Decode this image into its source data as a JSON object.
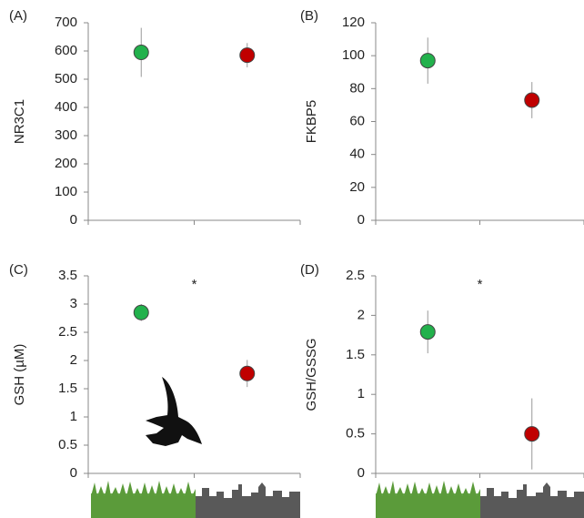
{
  "chart_data": [
    {
      "type": "point",
      "panel_label": "(A)",
      "y_label": "NR3C1",
      "categories": [
        null,
        null
      ],
      "values": [
        595,
        585
      ],
      "errors": [
        87,
        43
      ],
      "colors": [
        "#22b14c",
        "#c00000"
      ],
      "ylim": [
        0,
        700
      ],
      "yticks": [
        0,
        100,
        200,
        300,
        400,
        500,
        600,
        700
      ]
    },
    {
      "type": "point",
      "panel_label": "(B)",
      "y_label": "FKBP5",
      "categories": [
        null,
        null
      ],
      "values": [
        97,
        73
      ],
      "errors": [
        14,
        11
      ],
      "colors": [
        "#22b14c",
        "#c00000"
      ],
      "ylim": [
        0,
        120
      ],
      "yticks": [
        0,
        20,
        40,
        60,
        80,
        100,
        120
      ]
    },
    {
      "type": "point",
      "panel_label": "(C)",
      "y_label": "GSH (µM)",
      "annotation": "*",
      "categories": [
        null,
        null
      ],
      "values": [
        2.85,
        1.77
      ],
      "errors": [
        0.15,
        0.24
      ],
      "colors": [
        "#22b14c",
        "#c00000"
      ],
      "ylim": [
        0,
        3.5
      ],
      "yticks": [
        0,
        0.5,
        1,
        1.5,
        2,
        2.5,
        3,
        3.5
      ]
    },
    {
      "type": "point",
      "panel_label": "(D)",
      "y_label": "GSH/GSSG",
      "annotation": "*",
      "categories": [
        null,
        null
      ],
      "values": [
        1.79,
        0.5
      ],
      "errors": [
        0.27,
        0.45
      ],
      "colors": [
        "#22b14c",
        "#c00000"
      ],
      "ylim": [
        0,
        2.5
      ],
      "yticks": [
        0,
        0.5,
        1,
        1.5,
        2,
        2.5
      ]
    }
  ]
}
